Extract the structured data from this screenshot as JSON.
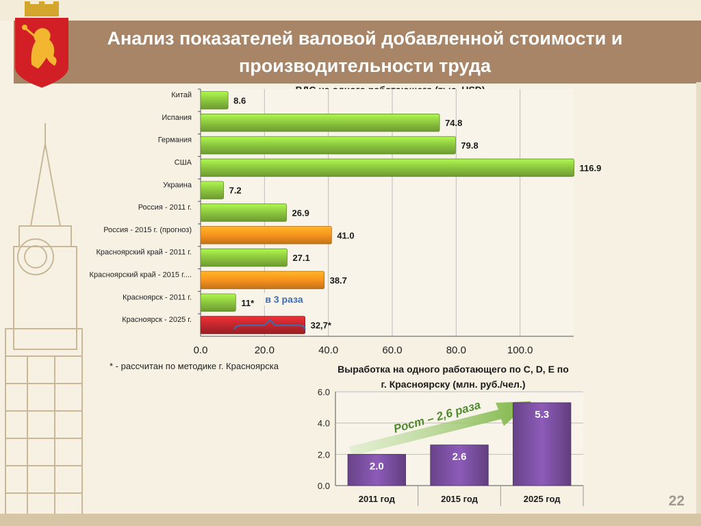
{
  "slide": {
    "title": "Анализ показателей валовой добавленной стоимости и производительности труда",
    "footnote": "* - рассчитан по методике г. Красноярска",
    "page_number": "22"
  },
  "colors": {
    "header": "#a88566",
    "green": "#8cc63f",
    "orange": "#f7931e",
    "red": "#c1272d",
    "purple": "#7a4fa0",
    "arrow": "#7cb342",
    "bracket": "#3a6fb0"
  },
  "icons": [
    "krasnoyarsk-coat-of-arms-icon",
    "clock-tower-icon"
  ],
  "chart_data": [
    {
      "type": "bar",
      "orientation": "horizontal",
      "title": "ВДС на одного работающего (тыс. USD)",
      "categories": [
        "Китай",
        "Испания",
        "Германия",
        "США",
        "Украина",
        "Россия - 2011 г.",
        "Россия - 2015 г. (прогноз)",
        "Красноярский край - 2011 г.",
        "Красноярский край - 2015 г....",
        "Красноярск - 2011 г.",
        "Красноярск - 2025 г."
      ],
      "values": [
        8.6,
        74.8,
        79.8,
        116.9,
        7.2,
        26.9,
        41.0,
        27.1,
        38.7,
        11,
        32.7
      ],
      "labels": [
        "8.6",
        "74.8",
        "79.8",
        "116.9",
        "7.2",
        "26.9",
        "41.0",
        "27.1",
        "38.7",
        "11*",
        "32,7*"
      ],
      "bar_colors": [
        "green",
        "green",
        "green",
        "green",
        "green",
        "green",
        "orange",
        "green",
        "orange",
        "green",
        "red"
      ],
      "xlim": [
        0,
        120
      ],
      "xticks": [
        "0.0",
        "20.0",
        "40.0",
        "60.0",
        "80.0",
        "100.0"
      ],
      "grid": true,
      "annotation": "в 3 раза"
    },
    {
      "type": "bar",
      "title_line1": "Выработка на одного работающего по C, D, E по",
      "title_line2": "г. Красноярску (млн. руб./чел.)",
      "categories": [
        "2011 год",
        "2015 год",
        "2025 год"
      ],
      "values": [
        2.0,
        2.6,
        5.3
      ],
      "labels": [
        "2.0",
        "2.6",
        "5.3"
      ],
      "ylim": [
        0,
        6
      ],
      "yticks": [
        "0.0",
        "2.0",
        "4.0",
        "6.0"
      ],
      "grid": true,
      "annotation": "Рост – 2,6 раза"
    }
  ]
}
